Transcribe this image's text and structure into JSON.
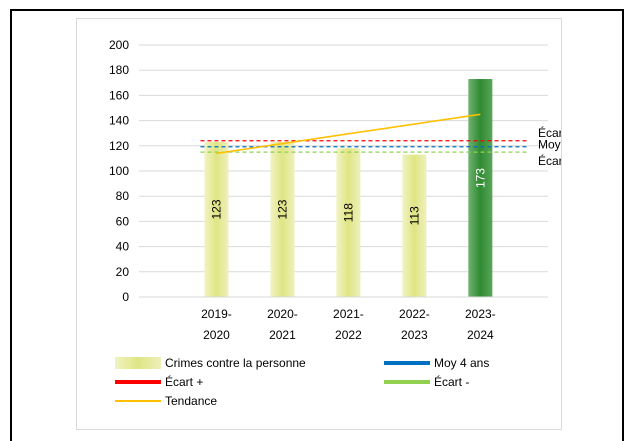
{
  "header_text": "",
  "chart_data": {
    "type": "bar",
    "title": "",
    "categories": [
      "2019-2020",
      "2020-2021",
      "2021-2022",
      "2022-2023",
      "2023-2024"
    ],
    "category_lines": [
      [
        "2019-",
        "2020"
      ],
      [
        "2020-",
        "2021"
      ],
      [
        "2021-",
        "2022"
      ],
      [
        "2022-",
        "2023"
      ],
      [
        "2023-",
        "2024"
      ]
    ],
    "values": [
      123,
      123,
      118,
      113,
      173
    ],
    "data_labels": [
      "123",
      "123",
      "118",
      "113",
      "173"
    ],
    "ylim": [
      0,
      200
    ],
    "yticks": [
      0,
      20,
      40,
      60,
      80,
      100,
      120,
      140,
      160,
      180,
      200
    ],
    "grid": true,
    "bar_series_name": "Crimes contre la personne",
    "reference_lines": [
      {
        "name": "Écart +",
        "value": 124,
        "color": "#ff0000",
        "style": "dashed"
      },
      {
        "name": "Moy 4 ans",
        "value": 119.25,
        "color": "#0070c0",
        "style": "dashed"
      },
      {
        "name": "Écart -",
        "value": 115,
        "color": "#92d050",
        "style": "dashed"
      }
    ],
    "trend": {
      "name": "Tendance",
      "start": 114,
      "end": 145,
      "color": "#ffc000"
    },
    "colors": {
      "bar": "#e6ea96",
      "bar_highlight": "#3a8f3a",
      "label_dark": "#000000",
      "label_light": "#ffffff"
    },
    "legend_position": "bottom"
  },
  "legend": {
    "items": [
      {
        "label": "Crimes contre la personne",
        "kind": "bar",
        "color": "#e6ea96"
      },
      {
        "label": "Moy 4 ans",
        "kind": "line",
        "color": "#0070c0"
      },
      {
        "label": "Écart +",
        "kind": "line",
        "color": "#ff0000"
      },
      {
        "label": "Écart -",
        "kind": "line",
        "color": "#92d050"
      },
      {
        "label": "Tendance",
        "kind": "thin",
        "color": "#ffc000"
      }
    ]
  }
}
